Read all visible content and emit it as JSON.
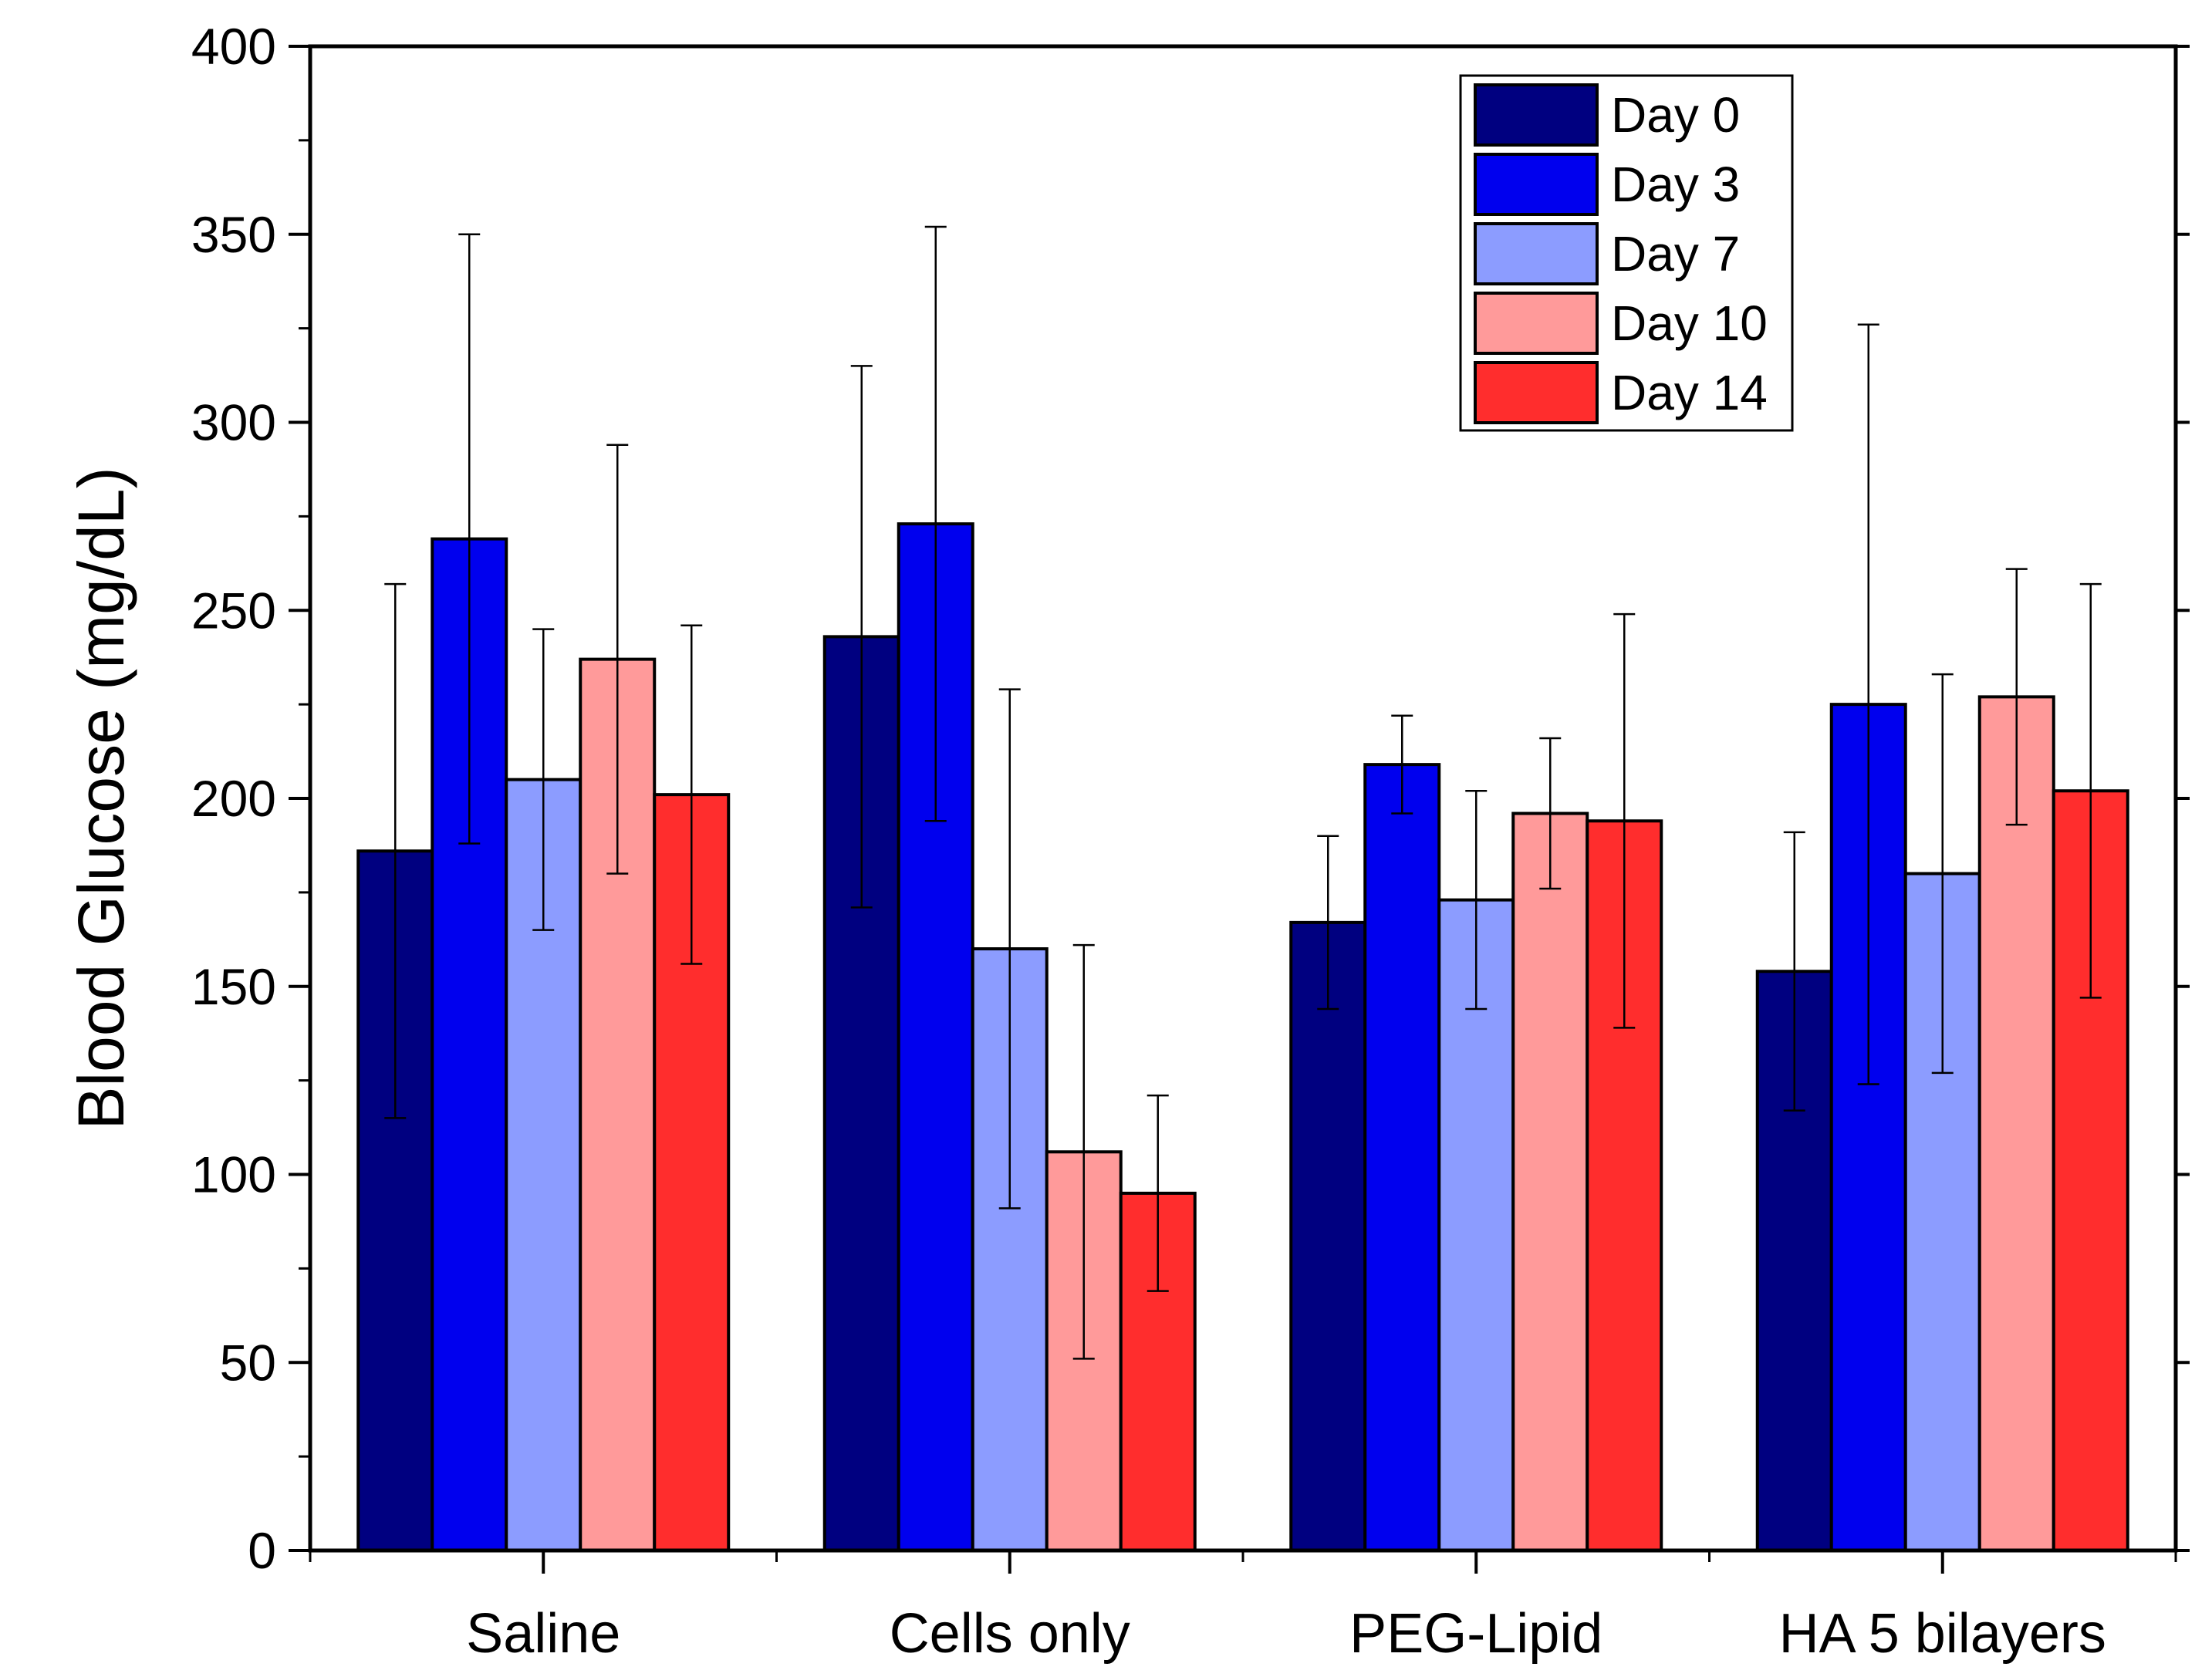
{
  "chart_data": {
    "type": "bar",
    "title": "",
    "xlabel": "",
    "ylabel": "Blood Glucose (mg/dL)",
    "ylim": [
      0,
      400
    ],
    "yticks": [
      0,
      50,
      100,
      150,
      200,
      250,
      300,
      350,
      400
    ],
    "categories": [
      "Saline",
      "Cells only",
      "PEG-Lipid",
      "HA 5 bilayers"
    ],
    "legend_position": "top-right",
    "grid": false,
    "series": [
      {
        "name": "Day 0",
        "color": "#000080",
        "values": [
          186,
          243,
          167,
          154
        ],
        "errors": [
          71,
          72,
          23,
          37
        ]
      },
      {
        "name": "Day 3",
        "color": "#0000ee",
        "values": [
          269,
          273,
          209,
          225
        ],
        "errors": [
          81,
          79,
          13,
          101
        ]
      },
      {
        "name": "Day 7",
        "color": "#8c9cff",
        "values": [
          205,
          160,
          173,
          180
        ],
        "errors": [
          40,
          69,
          29,
          53
        ]
      },
      {
        "name": "Day 10",
        "color": "#ff9a9a",
        "values": [
          237,
          106,
          196,
          227
        ],
        "errors": [
          57,
          55,
          20,
          34
        ]
      },
      {
        "name": "Day 14",
        "color": "#ff2d2d",
        "values": [
          201,
          95,
          194,
          202
        ],
        "errors": [
          45,
          26,
          55,
          55
        ]
      }
    ]
  }
}
